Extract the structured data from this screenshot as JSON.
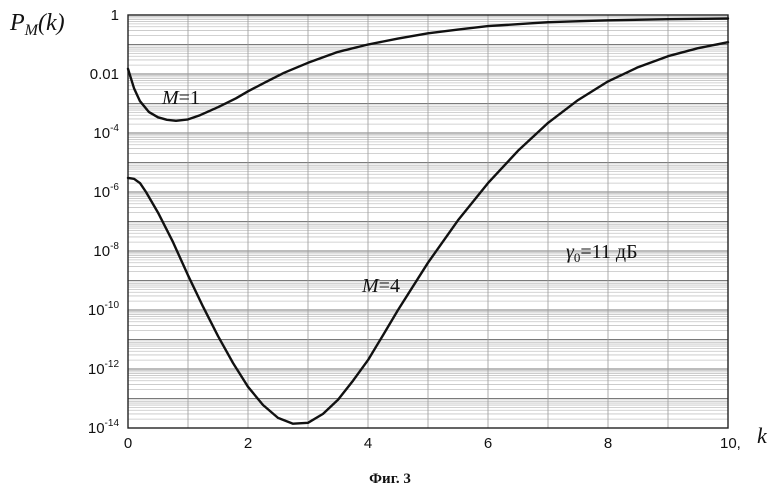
{
  "chart_data": {
    "type": "line",
    "ylabel": "P_M(k)",
    "xlabel": "k",
    "x_tick_labels": [
      "0",
      "2",
      "4",
      "6",
      "8",
      "10,"
    ],
    "xlim": [
      0,
      10
    ],
    "ylim": [
      1e-14,
      1
    ],
    "y_scale": "log",
    "y_ticks": [
      {
        "value": 1,
        "base": "1",
        "exp": ""
      },
      {
        "value": 0.01,
        "base": "0.01",
        "exp": ""
      },
      {
        "value": 0.0001,
        "base": "10",
        "exp": "-4"
      },
      {
        "value": 1e-06,
        "base": "10",
        "exp": "-6"
      },
      {
        "value": 1e-08,
        "base": "10",
        "exp": "-8"
      },
      {
        "value": 1e-10,
        "base": "10",
        "exp": "-10"
      },
      {
        "value": 1e-12,
        "base": "10",
        "exp": "-12"
      },
      {
        "value": 1e-14,
        "base": "10",
        "exp": "-14"
      }
    ],
    "grid": true,
    "series": [
      {
        "name": "M=1",
        "label_var": "M",
        "label_rest": "=1",
        "points": [
          [
            0.0,
            0.015
          ],
          [
            0.1,
            0.0033
          ],
          [
            0.2,
            0.0012
          ],
          [
            0.35,
            0.00051
          ],
          [
            0.5,
            0.00034
          ],
          [
            0.65,
            0.00028
          ],
          [
            0.8,
            0.00026
          ],
          [
            1.0,
            0.00029
          ],
          [
            1.2,
            0.0004
          ],
          [
            1.5,
            0.00075
          ],
          [
            1.8,
            0.0015
          ],
          [
            2.0,
            0.0026
          ],
          [
            2.3,
            0.0054
          ],
          [
            2.6,
            0.011
          ],
          [
            3.0,
            0.024
          ],
          [
            3.5,
            0.056
          ],
          [
            4.0,
            0.1
          ],
          [
            4.5,
            0.158
          ],
          [
            5.0,
            0.24
          ],
          [
            5.5,
            0.32
          ],
          [
            6.0,
            0.42
          ],
          [
            7.0,
            0.57
          ],
          [
            8.0,
            0.66
          ],
          [
            9.0,
            0.72
          ],
          [
            10.0,
            0.76
          ]
        ]
      },
      {
        "name": "M=4",
        "label_var": "M",
        "label_rest": "=4",
        "points": [
          [
            0.0,
            3e-06
          ],
          [
            0.1,
            2.8e-06
          ],
          [
            0.2,
            2e-06
          ],
          [
            0.3,
            1e-06
          ],
          [
            0.5,
            2e-07
          ],
          [
            0.75,
            2e-08
          ],
          [
            1.0,
            1.5e-09
          ],
          [
            1.25,
            1.3e-10
          ],
          [
            1.5,
            1.3e-11
          ],
          [
            1.75,
            1.6e-12
          ],
          [
            2.0,
            2.5e-13
          ],
          [
            2.25,
            6e-14
          ],
          [
            2.5,
            2.2e-14
          ],
          [
            2.75,
            1.4e-14
          ],
          [
            3.0,
            1.5e-14
          ],
          [
            3.25,
            3e-14
          ],
          [
            3.5,
            9e-14
          ],
          [
            3.75,
            4e-13
          ],
          [
            4.0,
            2e-12
          ],
          [
            4.25,
            1.4e-11
          ],
          [
            4.5,
            1e-10
          ],
          [
            5.0,
            4e-09
          ],
          [
            5.5,
            1.1e-07
          ],
          [
            6.0,
            2e-06
          ],
          [
            6.5,
            2.5e-05
          ],
          [
            7.0,
            0.00022
          ],
          [
            7.5,
            0.0013
          ],
          [
            8.0,
            0.0056
          ],
          [
            8.5,
            0.017
          ],
          [
            9.0,
            0.04
          ],
          [
            9.5,
            0.075
          ],
          [
            10.0,
            0.12
          ]
        ]
      }
    ],
    "annotation": {
      "sym": "γ",
      "sub": "0",
      "rest": "=11 дБ"
    }
  },
  "caption": "Фиг. 3"
}
